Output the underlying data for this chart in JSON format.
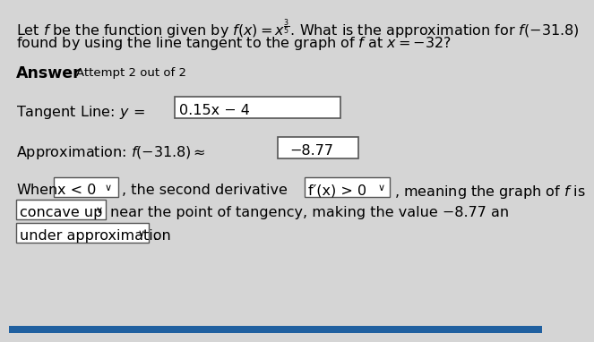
{
  "bg_color": "#d5d5d5",
  "box_color": "#ffffff",
  "text_color": "#000000",
  "blue_bar_color": "#2060a0",
  "font_size_main": 11.5,
  "font_size_title": 11.5,
  "font_size_answer_bold": 12.5,
  "font_size_attempt": 9.5,
  "line1": "Let $f$ be the function given by $f(x) = x^{\\frac{3}{5}}$. What is the approximation for $f(-31.8)$",
  "line2": "found by using the line tangent to the graph of $f$ at $x = -32$?",
  "answer_bold": "Answer",
  "attempt_text": "Attempt 2 out of 2",
  "tangent_prefix": "Tangent Line: $y\\,=$",
  "tangent_value": "0.15x − 4",
  "approx_prefix": "Approximation: $f(-31.8) \\approx$",
  "approx_value": "−8.77",
  "when_pre": "When",
  "drop1": "x < 0",
  "drop1_chevron": "∨",
  "when_mid": ", the second derivative",
  "drop2": "f′(x) > 0",
  "drop2_chevron": "∨",
  "when_post": ", meaning the graph of $f$ is",
  "drop3": "concave up",
  "drop3_chevron": "∨",
  "near_text": "near the point of tangency, making the value −8.77 an",
  "drop4": "under approximation",
  "drop4_chevron": "∨",
  "period": "."
}
